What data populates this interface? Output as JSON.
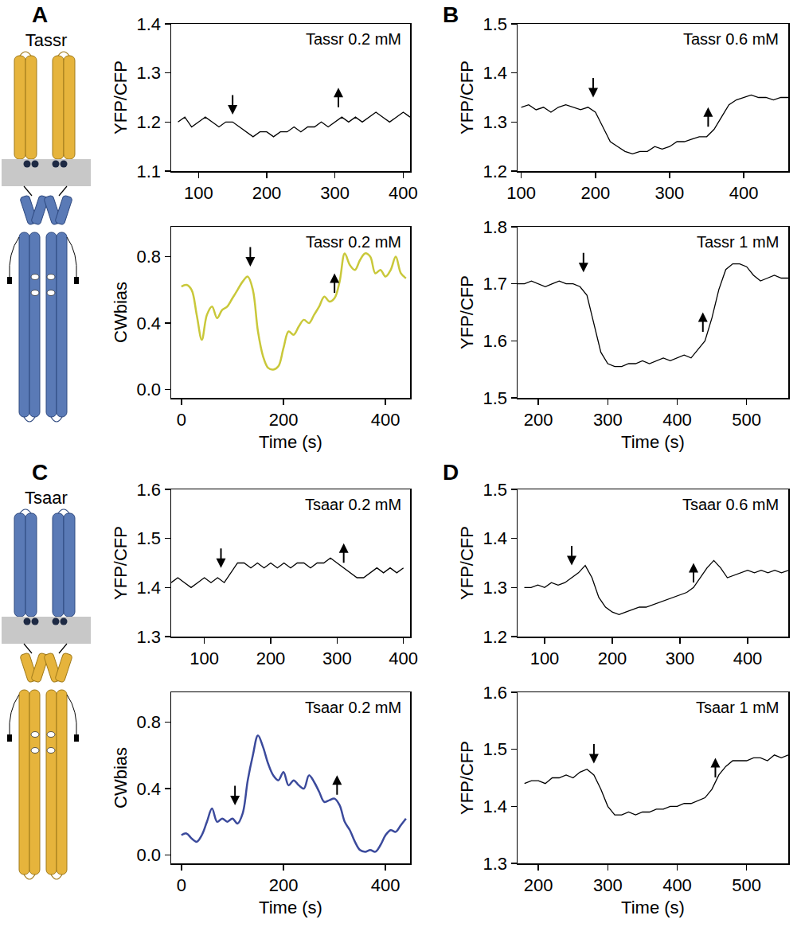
{
  "panel_letters": [
    "A",
    "B",
    "C",
    "D"
  ],
  "receptors": [
    {
      "name": "Tassr"
    },
    {
      "name": "Tsaar"
    }
  ],
  "chart_data": [
    {
      "type": "line",
      "label": "Tassr 0.2 mM",
      "ylabel": "YFP/CFP",
      "color": "#000000",
      "x": [
        70,
        80,
        90,
        100,
        110,
        120,
        130,
        140,
        150,
        160,
        170,
        180,
        190,
        200,
        210,
        220,
        230,
        240,
        250,
        260,
        270,
        280,
        290,
        300,
        310,
        320,
        330,
        340,
        350,
        360,
        370,
        380,
        390,
        400,
        410
      ],
      "values": [
        1.2,
        1.21,
        1.19,
        1.2,
        1.21,
        1.2,
        1.19,
        1.2,
        1.2,
        1.19,
        1.18,
        1.17,
        1.18,
        1.18,
        1.17,
        1.18,
        1.18,
        1.19,
        1.18,
        1.19,
        1.19,
        1.2,
        1.19,
        1.2,
        1.21,
        1.2,
        1.21,
        1.2,
        1.21,
        1.22,
        1.21,
        1.2,
        1.21,
        1.22,
        1.21
      ],
      "xlim": [
        60,
        410
      ],
      "xticks": [
        100,
        200,
        300,
        400
      ],
      "ylim": [
        1.1,
        1.4
      ],
      "yticks": [
        1.1,
        1.2,
        1.3,
        1.4
      ],
      "arrows": [
        {
          "x": 150,
          "y": 1.215,
          "direction": "down"
        },
        {
          "x": 305,
          "y": 1.27,
          "direction": "up"
        }
      ]
    },
    {
      "type": "line",
      "label": "Tassr 0.2 mM",
      "ylabel": "CWbias",
      "xlabel": "Time (s)",
      "color": "#c9c83a",
      "x": [
        0,
        10,
        20,
        30,
        40,
        50,
        60,
        70,
        80,
        90,
        100,
        110,
        120,
        130,
        140,
        150,
        160,
        170,
        180,
        190,
        200,
        210,
        220,
        230,
        240,
        250,
        260,
        270,
        280,
        290,
        300,
        310,
        320,
        330,
        340,
        350,
        360,
        370,
        380,
        390,
        400,
        410,
        420,
        430,
        440
      ],
      "values": [
        0.62,
        0.63,
        0.6,
        0.45,
        0.3,
        0.45,
        0.5,
        0.43,
        0.48,
        0.5,
        0.55,
        0.6,
        0.65,
        0.68,
        0.6,
        0.35,
        0.2,
        0.13,
        0.12,
        0.14,
        0.25,
        0.35,
        0.33,
        0.38,
        0.42,
        0.4,
        0.45,
        0.5,
        0.56,
        0.53,
        0.55,
        0.65,
        0.82,
        0.75,
        0.72,
        0.78,
        0.82,
        0.8,
        0.7,
        0.72,
        0.68,
        0.72,
        0.8,
        0.7,
        0.67
      ],
      "xlim": [
        -20,
        448
      ],
      "xticks": [
        0,
        200,
        400
      ],
      "ylim": [
        -0.05,
        0.98
      ],
      "yticks": [
        {
          "value": 0,
          "label": "0.0"
        },
        0.4,
        0.8
      ],
      "arrows": [
        {
          "x": 135,
          "y": 0.74,
          "direction": "down"
        },
        {
          "x": 300,
          "y": 0.7,
          "direction": "up"
        }
      ]
    },
    {
      "type": "line",
      "label": "Tassr 0.6 mM",
      "ylabel": "YFP/CFP",
      "color": "#000000",
      "x": [
        100,
        110,
        120,
        130,
        140,
        150,
        160,
        170,
        180,
        190,
        200,
        210,
        220,
        230,
        240,
        250,
        260,
        270,
        280,
        290,
        300,
        310,
        320,
        330,
        340,
        350,
        360,
        370,
        380,
        390,
        400,
        410,
        420,
        430,
        440,
        450,
        460
      ],
      "values": [
        1.33,
        1.335,
        1.325,
        1.33,
        1.32,
        1.33,
        1.335,
        1.33,
        1.325,
        1.33,
        1.32,
        1.29,
        1.26,
        1.25,
        1.24,
        1.235,
        1.24,
        1.24,
        1.25,
        1.245,
        1.25,
        1.26,
        1.26,
        1.265,
        1.27,
        1.27,
        1.285,
        1.31,
        1.335,
        1.345,
        1.35,
        1.355,
        1.35,
        1.35,
        1.345,
        1.35,
        1.35
      ],
      "xlim": [
        95,
        460
      ],
      "xticks": [
        100,
        200,
        300,
        400
      ],
      "ylim": [
        1.2,
        1.5
      ],
      "yticks": [
        1.2,
        1.3,
        1.4,
        1.5
      ],
      "arrows": [
        {
          "x": 197,
          "y": 1.35,
          "direction": "down"
        },
        {
          "x": 352,
          "y": 1.33,
          "direction": "up"
        }
      ]
    },
    {
      "type": "line",
      "label": "Tassr 1 mM",
      "ylabel": "YFP/CFP",
      "xlabel": "Time (s)",
      "color": "#000000",
      "x": [
        170,
        180,
        190,
        200,
        210,
        220,
        230,
        240,
        250,
        260,
        270,
        280,
        290,
        300,
        310,
        320,
        330,
        340,
        350,
        360,
        370,
        380,
        390,
        400,
        410,
        420,
        430,
        440,
        450,
        460,
        470,
        480,
        490,
        500,
        510,
        520,
        530,
        540,
        550,
        560
      ],
      "values": [
        1.7,
        1.7,
        1.705,
        1.7,
        1.695,
        1.7,
        1.705,
        1.7,
        1.7,
        1.695,
        1.68,
        1.63,
        1.58,
        1.56,
        1.555,
        1.555,
        1.56,
        1.56,
        1.565,
        1.56,
        1.565,
        1.57,
        1.565,
        1.57,
        1.575,
        1.57,
        1.585,
        1.6,
        1.64,
        1.69,
        1.725,
        1.735,
        1.735,
        1.73,
        1.715,
        1.705,
        1.71,
        1.715,
        1.71,
        1.71
      ],
      "xlim": [
        170,
        560
      ],
      "xticks": [
        200,
        300,
        400,
        500
      ],
      "ylim": [
        1.5,
        1.8
      ],
      "yticks": [
        1.5,
        1.6,
        1.7,
        1.8
      ],
      "arrows": [
        {
          "x": 265,
          "y": 1.72,
          "direction": "down"
        },
        {
          "x": 437,
          "y": 1.65,
          "direction": "up"
        }
      ]
    },
    {
      "type": "line",
      "label": "Tsaar 0.2 mM",
      "ylabel": "YFP/CFP",
      "color": "#000000",
      "x": [
        50,
        60,
        70,
        80,
        90,
        100,
        110,
        120,
        130,
        140,
        150,
        160,
        170,
        180,
        190,
        200,
        210,
        220,
        230,
        240,
        250,
        260,
        270,
        280,
        290,
        300,
        310,
        320,
        330,
        340,
        350,
        360,
        370,
        380,
        390,
        400
      ],
      "values": [
        1.41,
        1.42,
        1.41,
        1.4,
        1.41,
        1.42,
        1.41,
        1.42,
        1.41,
        1.43,
        1.45,
        1.45,
        1.44,
        1.45,
        1.44,
        1.45,
        1.44,
        1.45,
        1.44,
        1.45,
        1.45,
        1.44,
        1.45,
        1.45,
        1.46,
        1.45,
        1.44,
        1.43,
        1.42,
        1.42,
        1.43,
        1.44,
        1.43,
        1.44,
        1.43,
        1.44
      ],
      "xlim": [
        50,
        410
      ],
      "xticks": [
        100,
        200,
        300,
        400
      ],
      "ylim": [
        1.3,
        1.6
      ],
      "yticks": [
        1.3,
        1.4,
        1.5,
        1.6
      ],
      "arrows": [
        {
          "x": 125,
          "y": 1.44,
          "direction": "down"
        },
        {
          "x": 310,
          "y": 1.49,
          "direction": "up"
        }
      ]
    },
    {
      "type": "line",
      "label": "Tsaar 0.2 mM",
      "ylabel": "CWbias",
      "xlabel": "Time (s)",
      "color": "#3b4a9c",
      "x": [
        0,
        10,
        20,
        30,
        40,
        50,
        60,
        70,
        80,
        90,
        100,
        110,
        120,
        130,
        140,
        150,
        160,
        170,
        180,
        190,
        200,
        210,
        220,
        230,
        240,
        250,
        260,
        270,
        280,
        290,
        300,
        310,
        320,
        330,
        340,
        350,
        360,
        370,
        380,
        390,
        400,
        410,
        420,
        430,
        440
      ],
      "values": [
        0.12,
        0.13,
        0.1,
        0.08,
        0.12,
        0.2,
        0.28,
        0.2,
        0.22,
        0.2,
        0.22,
        0.19,
        0.25,
        0.45,
        0.6,
        0.72,
        0.65,
        0.55,
        0.48,
        0.45,
        0.5,
        0.42,
        0.45,
        0.42,
        0.4,
        0.48,
        0.44,
        0.38,
        0.32,
        0.33,
        0.34,
        0.3,
        0.2,
        0.15,
        0.08,
        0.03,
        0.02,
        0.03,
        0.02,
        0.06,
        0.12,
        0.15,
        0.14,
        0.18,
        0.22
      ],
      "xlim": [
        -20,
        448
      ],
      "xticks": [
        0,
        200,
        400
      ],
      "ylim": [
        -0.05,
        0.98
      ],
      "yticks": [
        {
          "value": 0,
          "label": "0.0"
        },
        0.4,
        0.8
      ],
      "arrows": [
        {
          "x": 105,
          "y": 0.3,
          "direction": "down"
        },
        {
          "x": 305,
          "y": 0.48,
          "direction": "up"
        }
      ]
    },
    {
      "type": "line",
      "label": "Tsaar 0.6 mM",
      "ylabel": "YFP/CFP",
      "color": "#000000",
      "x": [
        70,
        80,
        90,
        100,
        110,
        120,
        130,
        140,
        150,
        160,
        170,
        180,
        190,
        200,
        210,
        220,
        230,
        240,
        250,
        260,
        270,
        280,
        290,
        300,
        310,
        320,
        330,
        340,
        350,
        360,
        370,
        380,
        390,
        400,
        410,
        420,
        430,
        440,
        450,
        460
      ],
      "values": [
        1.3,
        1.3,
        1.305,
        1.3,
        1.31,
        1.305,
        1.31,
        1.32,
        1.33,
        1.345,
        1.32,
        1.28,
        1.26,
        1.25,
        1.245,
        1.25,
        1.255,
        1.26,
        1.26,
        1.265,
        1.27,
        1.275,
        1.28,
        1.285,
        1.29,
        1.3,
        1.32,
        1.34,
        1.355,
        1.34,
        1.32,
        1.325,
        1.33,
        1.335,
        1.33,
        1.335,
        1.33,
        1.335,
        1.33,
        1.335
      ],
      "xlim": [
        60,
        460
      ],
      "xticks": [
        100,
        200,
        300,
        400
      ],
      "ylim": [
        1.2,
        1.5
      ],
      "yticks": [
        1.2,
        1.3,
        1.4,
        1.5
      ],
      "arrows": [
        {
          "x": 140,
          "y": 1.345,
          "direction": "down"
        },
        {
          "x": 320,
          "y": 1.35,
          "direction": "up"
        }
      ]
    },
    {
      "type": "line",
      "label": "Tsaar 1 mM",
      "ylabel": "YFP/CFP",
      "xlabel": "Time (s)",
      "color": "#000000",
      "x": [
        180,
        190,
        200,
        210,
        220,
        230,
        240,
        250,
        260,
        270,
        280,
        290,
        300,
        310,
        320,
        330,
        340,
        350,
        360,
        370,
        380,
        390,
        400,
        410,
        420,
        430,
        440,
        450,
        460,
        470,
        480,
        490,
        500,
        510,
        520,
        530,
        540,
        550,
        560
      ],
      "values": [
        1.44,
        1.445,
        1.445,
        1.44,
        1.45,
        1.45,
        1.455,
        1.45,
        1.46,
        1.465,
        1.455,
        1.43,
        1.4,
        1.385,
        1.385,
        1.39,
        1.385,
        1.39,
        1.39,
        1.395,
        1.395,
        1.4,
        1.4,
        1.405,
        1.405,
        1.41,
        1.415,
        1.43,
        1.455,
        1.47,
        1.48,
        1.48,
        1.48,
        1.485,
        1.485,
        1.48,
        1.49,
        1.485,
        1.49
      ],
      "xlim": [
        170,
        560
      ],
      "xticks": [
        200,
        300,
        400,
        500
      ],
      "ylim": [
        1.3,
        1.6
      ],
      "yticks": [
        1.3,
        1.4,
        1.5,
        1.6
      ],
      "arrows": [
        {
          "x": 280,
          "y": 1.475,
          "direction": "down"
        },
        {
          "x": 455,
          "y": 1.485,
          "direction": "up"
        }
      ]
    }
  ]
}
